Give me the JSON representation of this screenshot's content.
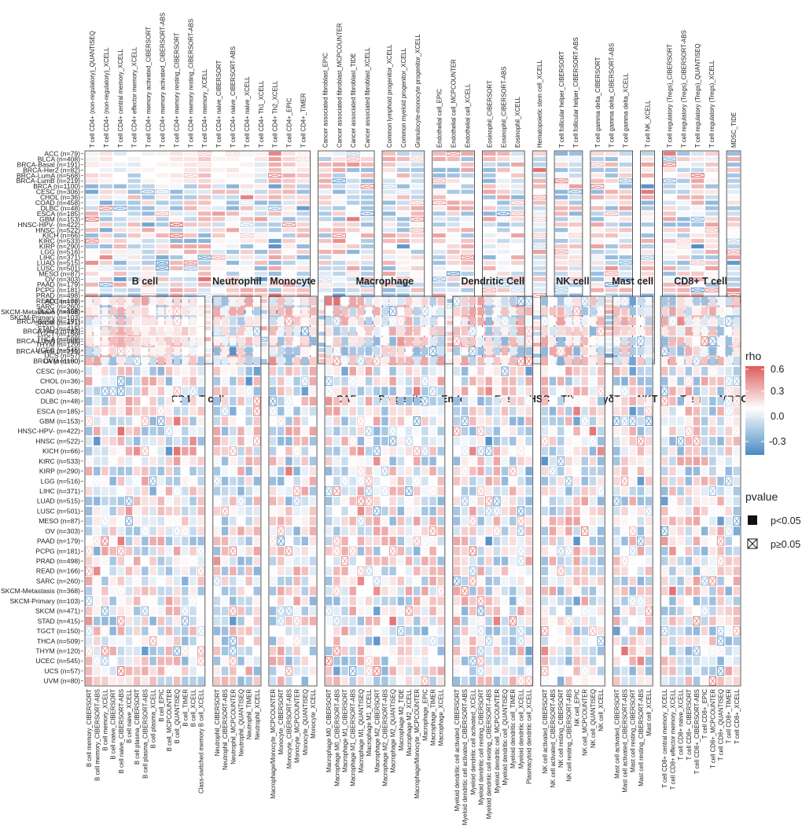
{
  "chart_data": {
    "type": "heatmap",
    "description_scale": "rho",
    "colorbar": {
      "title": "rho",
      "ticks": [
        0.6,
        0.3,
        0.0,
        -0.3
      ],
      "range": [
        -0.55,
        0.6
      ],
      "colors": {
        "negative": "#4a8ac4",
        "zero": "#ffffff",
        "positive": "#de5d5d"
      }
    },
    "significance_legend": {
      "title": "pvalue",
      "items": [
        {
          "symbol": "filled-square",
          "label": "p<0.05"
        },
        {
          "symbol": "crossed-square",
          "label": "p≥0.05"
        }
      ]
    },
    "cancers": [
      "ACC (n=79)",
      "BLCA (n=408)",
      "BRCA-Basal (n=191)",
      "BRCA-Her2 (n=82)",
      "BRCA-LumA (n=568)",
      "BRCA-LumB (n=219)",
      "BRCA (n=1100)",
      "CESC (n=306)",
      "CHOL (n=36)",
      "COAD (n=458)",
      "DLBC (n=48)",
      "ESCA (n=185)",
      "GBM (n=153)",
      "HNSC-HPV- (n=422)",
      "HNSC (n=522)",
      "KICH (n=66)",
      "KIRC (n=533)",
      "KIRP (n=290)",
      "LGG (n=516)",
      "LIHC (n=371)",
      "LUAD (n=515)",
      "LUSC (n=501)",
      "MESO (n=87)",
      "OV (n=303)",
      "PAAD (n=179)",
      "PCPG (n=181)",
      "PRAD (n=498)",
      "READ (n=166)",
      "SARC (n=260)",
      "SKCM-Metastasis (n=368)",
      "SKCM-Primary (n=103)",
      "SKCM (n=471)",
      "STAD (n=415)",
      "TGCT (n=150)",
      "THCA (n=509)",
      "THYM (n=120)",
      "UCEC (n=545)",
      "UCS (n=57)",
      "UVM (n=80)"
    ],
    "top_panels": [
      {
        "group": "CD4+ T cell",
        "cells": [
          "T cell CD4+ (non-regulatory)_QUANTISEQ",
          "T cell CD4+ (non-regulatory)_XCELL",
          "T cell CD4+ central memory_XCELL",
          "T cell CD4+ effector memory_XCELL",
          "T cell CD4+ memory activated_CIBERSORT",
          "T cell CD4+ memory activated_CIBERSORT-ABS",
          "T cell CD4+ memory resting_CIBERSORT",
          "T cell CD4+ memory resting_CIBERSORT-ABS",
          "T cell CD4+ memory_XCELL",
          "T cell CD4+ naive_CIBERSORT",
          "T cell CD4+ naive_CIBERSORT-ABS",
          "T cell CD4+ naive_XCELL",
          "T cell CD4+ Th1_XCELL",
          "T cell CD4+ Th2_XCELL",
          "T cell CD4+_EPIC",
          "T cell CD4+_TIMER"
        ]
      },
      {
        "group": "CAF",
        "cells": [
          "Cancer associated fibroblast_EPIC",
          "Cancer associated fibroblast_MCPCOUNTER",
          "Cancer associated fibroblast_TIDE",
          "Cancer associated fibroblast_XCELL"
        ]
      },
      {
        "group": "Progenitor",
        "cells": [
          "Common lymphoid progenitor_XCELL",
          "Common myeloid progenitor_XCELL",
          "Granulocyte-monocyte progenitor_XCELL"
        ]
      },
      {
        "group": "Endo",
        "cells": [
          "Endothelial cell_EPIC",
          "Endothelial cell_MCPCOUNTER",
          "Endothelial cell_XCELL"
        ]
      },
      {
        "group": "Eos",
        "cells": [
          "Eosinophil_CIBERSORT",
          "Eosinophil_CIBERSORT-ABS",
          "Eosinophil_XCELL"
        ]
      },
      {
        "group": "HSC",
        "cells": [
          "Hematopoietic stem cell_XCELL"
        ]
      },
      {
        "group": "Tfh",
        "cells": [
          "T cell follicular helper_CIBERSORT",
          "T cell follicular helper_CIBERSORT-ABS"
        ]
      },
      {
        "group": "γδT",
        "cells": [
          "T cell gamma delta_CIBERSORT",
          "T cell gamma delta_CIBERSORT-ABS",
          "T cell gamma delta_XCELL"
        ]
      },
      {
        "group": "NKT",
        "cells": [
          "T cell NK_XCELL"
        ]
      },
      {
        "group": "Treg",
        "cells": [
          "T cell regulatory (Tregs)_CIBERSORT",
          "T cell regulatory (Tregs)_CIBERSORT-ABS",
          "T cell regulatory (Tregs)_QUANTISEQ",
          "T cell regulatory (Tregs)_XCELL"
        ]
      },
      {
        "group": "MDSC",
        "cells": [
          "MDSC_TIDE"
        ]
      }
    ],
    "bottom_panels": [
      {
        "group": "B cell",
        "cells": [
          "B cell memory_CIBERSORT",
          "B cell memory_CIBERSORT-ABS",
          "B cell memory_XCELL",
          "B cell naive_CIBERSORT",
          "B cell naive_CIBERSORT-ABS",
          "B cell naive_XCELL",
          "B cell plasma_CIBERSORT",
          "B cell plasma_CIBERSORT-ABS",
          "B cell plasma_XCELL",
          "B cell_EPIC",
          "B cell_MCPCOUNTER",
          "B cell_QUANTISEQ",
          "B cell_TIMER",
          "B cell_XCELL",
          "Class-switched memory B cell_XCELL"
        ]
      },
      {
        "group": "Neutrophil",
        "cells": [
          "Neutrophil_CIBERSORT",
          "Neutrophil_CIBERSORT-ABS",
          "Neutrophil_MCPCOUNTER",
          "Neutrophil_QUANTISEQ",
          "Neutrophil_TIMER",
          "Neutrophil_XCELL"
        ]
      },
      {
        "group": "Monocyte",
        "cells": [
          "Macrophage/Monocyte_MCPCOUNTER",
          "Monocyte_CIBERSORT",
          "Monocyte_CIBERSORT-ABS",
          "Monocyte_MCPCOUNTER",
          "Monocyte_QUANTISEQ",
          "Monocyte_XCELL"
        ]
      },
      {
        "group": "Macrophage",
        "cells": [
          "Macrophage M0_CIBERSORT",
          "Macrophage M0_CIBERSORT-ABS",
          "Macrophage M1_CIBERSORT",
          "Macrophage M1_CIBERSORT-ABS",
          "Macrophage M1_QUANTISEQ",
          "Macrophage M1_XCELL",
          "Macrophage M2_CIBERSORT",
          "Macrophage M2_CIBERSORT-ABS",
          "Macrophage M2_QUANTISEQ",
          "Macrophage M2_TIDE",
          "Macrophage M2_XCELL",
          "Macrophage/Monocyte_MCPCOUNTER",
          "Macrophage_EPIC",
          "Macrophage_TIMER",
          "Macrophage_XCELL"
        ]
      },
      {
        "group": "Dendritic Cell",
        "cells": [
          "Myeloid dendritic cell activated_CIBERSORT",
          "Myeloid dendritic cell activated_CIBERSORT-ABS",
          "Myeloid dendritic cell activated_XCELL",
          "Myeloid dendritic cell resting_CIBERSORT",
          "Myeloid dendritic cell resting_CIBERSORT-ABS",
          "Myeloid dendritic cell_MCPCOUNTER",
          "Myeloid dendritic cell_QUANTISEQ",
          "Myeloid dendritic cell_TIMER",
          "Myeloid dendritic cell_XCELL",
          "Plasmacytoid dendritic cell_XCELL"
        ]
      },
      {
        "group": "NK cell",
        "cells": [
          "NK cell activated_CIBERSORT",
          "NK cell activated_CIBERSORT-ABS",
          "NK cell resting_CIBERSORT",
          "NK cell resting_CIBERSORT-ABS",
          "NK cell_EPIC",
          "NK cell_MCPCOUNTER",
          "NK cell_QUANTISEQ",
          "NK cell_XCELL"
        ]
      },
      {
        "group": "Mast cell",
        "cells": [
          "Mast cell activated_CIBERSORT",
          "Mast cell activated_CIBERSORT-ABS",
          "Mast cell resting_CIBERSORT",
          "Mast cell resting_CIBERSORT-ABS",
          "Mast cell_XCELL"
        ]
      },
      {
        "group": "CD8+ T cell",
        "cells": [
          "T cell CD8+ central memory_XCELL",
          "T cell CD8+ effector memory_XCELL",
          "T cell CD8+ naive_XCELL",
          "T cell CD8+_CIBERSORT",
          "T cell CD8+_CIBERSORT-ABS",
          "T cell CD8+_EPIC",
          "T cell CD8+_MCPCOUNTER",
          "T cell CD8+_QUANTISEQ",
          "T cell CD8+_TIMER",
          "T cell CD8+_XCELL"
        ]
      }
    ],
    "values_note": "rho per cancer (rows) x cell-method (columns); 39 rows per column",
    "top_values": [
      [
        0.05,
        0.1,
        -0.1,
        0.0,
        -0.05,
        0.05,
        0.1,
        0.05,
        0.15,
        0.0,
        0.1,
        -0.05,
        0.05,
        0.45,
        0.1,
        0.05
      ],
      [
        -0.05,
        0.1,
        0.0,
        0.05,
        0.0,
        0.0,
        0.1,
        0.1,
        0.2,
        0.05,
        0.05,
        0.0,
        0.1,
        0.35,
        0.15,
        0.1
      ],
      [
        0.1,
        0.05,
        -0.05,
        -0.1,
        0.0,
        0.05,
        0.05,
        0.1,
        0.1,
        0.0,
        0.0,
        0.05,
        -0.1,
        0.3,
        0.2,
        0.05
      ],
      [
        0.0,
        -0.05,
        -0.1,
        0.05,
        0.05,
        0.0,
        0.0,
        0.1,
        0.15,
        0.05,
        0.1,
        0.0,
        -0.05,
        0.25,
        0.05,
        0.1
      ],
      [
        0.15,
        0.1,
        0.0,
        -0.25,
        0.0,
        0.05,
        0.1,
        0.15,
        0.25,
        0.0,
        0.05,
        0.05,
        -0.1,
        0.35,
        0.3,
        0.2
      ],
      [
        0.1,
        0.05,
        0.0,
        -0.2,
        0.05,
        0.0,
        0.05,
        0.1,
        0.15,
        0.05,
        0.0,
        0.0,
        -0.15,
        0.3,
        0.2,
        0.1
      ]
    ],
    "bottom_values": [
      [
        0.05,
        0.1,
        0.0,
        0.1,
        0.15,
        0.05,
        0.2,
        0.35,
        0.05,
        0.1,
        0.05,
        0.15,
        0.05,
        0.1,
        0.0
      ],
      [
        0.1,
        0.05,
        0.05,
        0.2,
        0.3,
        0.1,
        0.1,
        0.15,
        0.0,
        0.05,
        0.1,
        0.2,
        0.1,
        0.05,
        0.05
      ],
      [
        -0.15,
        -0.05,
        0.05,
        0.1,
        0.25,
        0.15,
        0.05,
        0.1,
        0.1,
        0.0,
        0.05,
        0.15,
        0.0,
        0.05,
        0.0
      ],
      [
        0.05,
        0.0,
        0.1,
        0.2,
        0.3,
        0.2,
        0.1,
        0.05,
        0.15,
        0.1,
        0.05,
        0.1,
        0.2,
        0.1,
        0.0
      ],
      [
        0.1,
        0.0,
        0.05,
        0.25,
        0.3,
        0.2,
        0.15,
        0.1,
        0.05,
        0.1,
        0.2,
        0.15,
        0.1,
        0.05,
        0.05
      ],
      [
        -0.2,
        -0.1,
        0.0,
        0.15,
        0.2,
        0.1,
        0.1,
        0.0,
        0.05,
        0.05,
        0.15,
        0.05,
        0.0,
        -0.05,
        0.0
      ]
    ]
  },
  "labels": {
    "rho_title": "rho",
    "tick_06": "0.6",
    "tick_03": "0.3",
    "tick_00": "0.0",
    "tick_m03": "-0.3",
    "pvalue_title": "pvalue",
    "p_sig": "p<0.05",
    "p_ns": "p≥0.05"
  }
}
